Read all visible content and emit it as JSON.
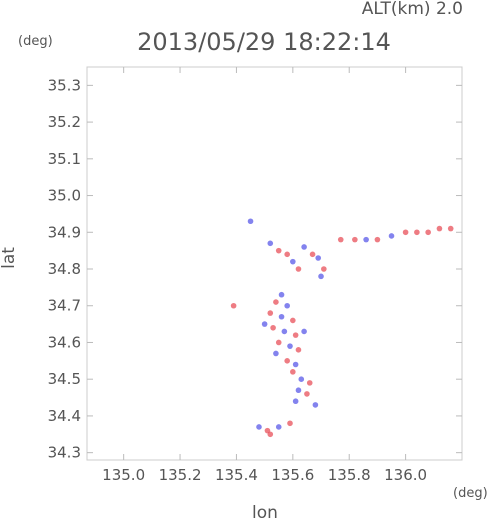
{
  "header": {
    "altitude_label": "ALT(km) 2.0",
    "timestamp": "2013/05/29 18:22:14",
    "y_unit": "(deg)",
    "x_unit": "(deg)"
  },
  "chart_data": {
    "type": "scatter",
    "xlabel": "lon",
    "ylabel": "lat",
    "xlim": [
      134.87,
      136.2
    ],
    "ylim": [
      34.28,
      35.35
    ],
    "x_ticks": [
      "135.0",
      "135.2",
      "135.4",
      "135.6",
      "135.8",
      "136.0"
    ],
    "y_ticks": [
      "34.3",
      "34.4",
      "34.5",
      "34.6",
      "34.7",
      "34.8",
      "34.9",
      "35.0",
      "35.1",
      "35.2",
      "35.3"
    ],
    "grid": false,
    "colors": {
      "positive": "#e8505a",
      "negative": "#5a5ae8"
    },
    "series": [
      {
        "name": "",
        "points": [
          [
            135.45,
            34.93,
            "negative"
          ],
          [
            135.52,
            34.87,
            "negative"
          ],
          [
            135.55,
            34.85,
            "positive"
          ],
          [
            135.58,
            34.84,
            "positive"
          ],
          [
            135.6,
            34.82,
            "negative"
          ],
          [
            135.62,
            34.8,
            "positive"
          ],
          [
            135.64,
            34.86,
            "negative"
          ],
          [
            135.67,
            34.84,
            "positive"
          ],
          [
            135.69,
            34.83,
            "negative"
          ],
          [
            135.71,
            34.8,
            "positive"
          ],
          [
            135.7,
            34.78,
            "negative"
          ],
          [
            135.77,
            34.88,
            "positive"
          ],
          [
            135.82,
            34.88,
            "positive"
          ],
          [
            135.86,
            34.88,
            "negative"
          ],
          [
            135.9,
            34.88,
            "positive"
          ],
          [
            135.95,
            34.89,
            "negative"
          ],
          [
            136.0,
            34.9,
            "positive"
          ],
          [
            136.04,
            34.9,
            "positive"
          ],
          [
            136.08,
            34.9,
            "positive"
          ],
          [
            136.12,
            34.91,
            "positive"
          ],
          [
            136.16,
            34.91,
            "positive"
          ],
          [
            135.39,
            34.7,
            "positive"
          ],
          [
            135.56,
            34.73,
            "negative"
          ],
          [
            135.54,
            34.71,
            "positive"
          ],
          [
            135.58,
            34.7,
            "negative"
          ],
          [
            135.52,
            34.68,
            "positive"
          ],
          [
            135.56,
            34.67,
            "negative"
          ],
          [
            135.6,
            34.66,
            "positive"
          ],
          [
            135.5,
            34.65,
            "negative"
          ],
          [
            135.53,
            34.64,
            "positive"
          ],
          [
            135.57,
            34.63,
            "negative"
          ],
          [
            135.61,
            34.62,
            "positive"
          ],
          [
            135.64,
            34.63,
            "negative"
          ],
          [
            135.55,
            34.6,
            "positive"
          ],
          [
            135.59,
            34.59,
            "negative"
          ],
          [
            135.62,
            34.58,
            "positive"
          ],
          [
            135.54,
            34.57,
            "negative"
          ],
          [
            135.58,
            34.55,
            "positive"
          ],
          [
            135.61,
            34.54,
            "negative"
          ],
          [
            135.6,
            34.52,
            "positive"
          ],
          [
            135.63,
            34.5,
            "negative"
          ],
          [
            135.66,
            34.49,
            "positive"
          ],
          [
            135.62,
            34.47,
            "negative"
          ],
          [
            135.65,
            34.46,
            "positive"
          ],
          [
            135.61,
            34.44,
            "negative"
          ],
          [
            135.68,
            34.43,
            "negative"
          ],
          [
            135.48,
            34.37,
            "negative"
          ],
          [
            135.51,
            34.36,
            "positive"
          ],
          [
            135.55,
            34.37,
            "negative"
          ],
          [
            135.59,
            34.38,
            "positive"
          ],
          [
            135.52,
            34.35,
            "positive"
          ]
        ]
      }
    ]
  }
}
